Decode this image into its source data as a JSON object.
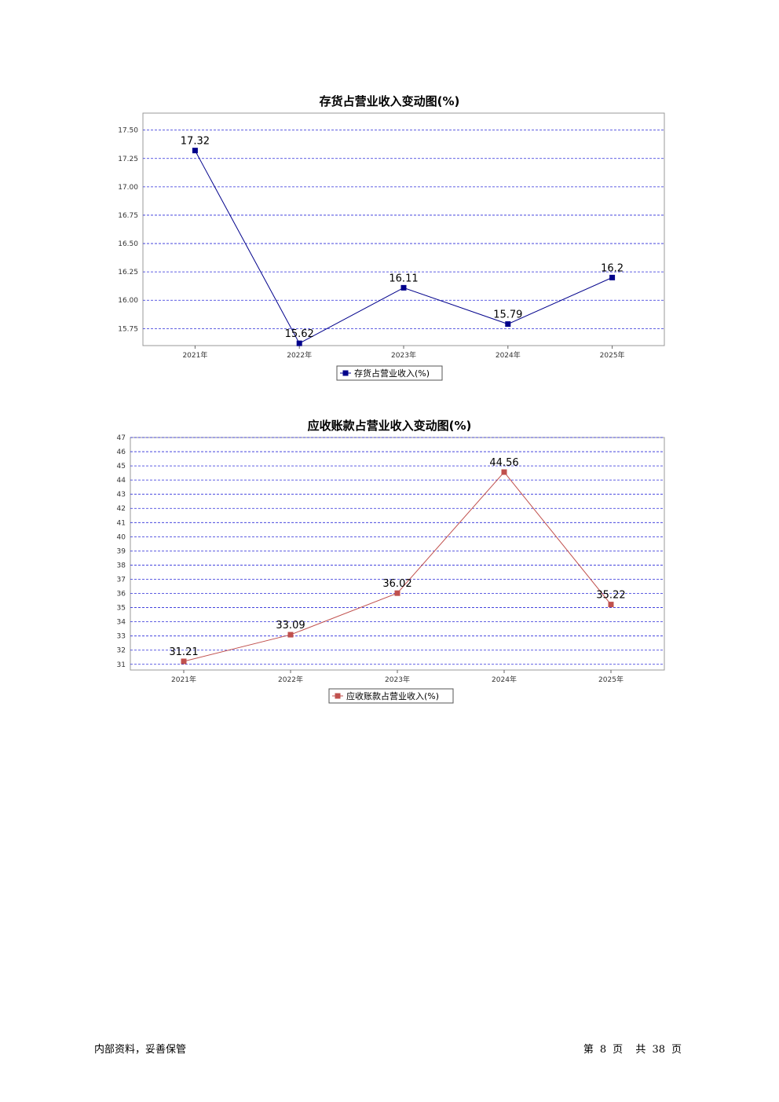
{
  "chart_data": [
    {
      "type": "line",
      "title": "存货占营业收入变动图(%)",
      "categories": [
        "2021年",
        "2022年",
        "2023年",
        "2024年",
        "2025年"
      ],
      "series": [
        {
          "name": "存货占营业收入(%)",
          "values": [
            17.32,
            15.62,
            16.11,
            15.79,
            16.2
          ],
          "color": "#00008b"
        }
      ],
      "ylim": [
        15.6,
        17.65
      ],
      "yticks": [
        15.75,
        16.0,
        16.25,
        16.5,
        16.75,
        17.0,
        17.25,
        17.5
      ],
      "ytick_labels": [
        "15.75",
        "16.00",
        "16.25",
        "16.50",
        "16.75",
        "17.00",
        "17.25",
        "17.50"
      ],
      "grid": true,
      "legend_position": "bottom"
    },
    {
      "type": "line",
      "title": "应收账款占营业收入变动图(%)",
      "categories": [
        "2021年",
        "2022年",
        "2023年",
        "2024年",
        "2025年"
      ],
      "series": [
        {
          "name": "应收账款占营业收入(%)",
          "values": [
            31.21,
            33.09,
            36.02,
            44.56,
            35.22
          ],
          "color": "#c0504d"
        }
      ],
      "ylim": [
        30.6,
        47.0
      ],
      "yticks": [
        31,
        32,
        33,
        34,
        35,
        36,
        37,
        38,
        39,
        40,
        41,
        42,
        43,
        44,
        45,
        46,
        47
      ],
      "ytick_labels": [
        "31",
        "32",
        "33",
        "34",
        "35",
        "36",
        "37",
        "38",
        "39",
        "40",
        "41",
        "42",
        "43",
        "44",
        "45",
        "46",
        "47"
      ],
      "grid": true,
      "legend_position": "bottom"
    }
  ],
  "footer": {
    "left_text": "内部资料，妥善保管",
    "page_prefix": "第",
    "page_number": "8",
    "page_unit": "页",
    "total_prefix": "共",
    "total_pages": "38",
    "total_unit": "页"
  }
}
